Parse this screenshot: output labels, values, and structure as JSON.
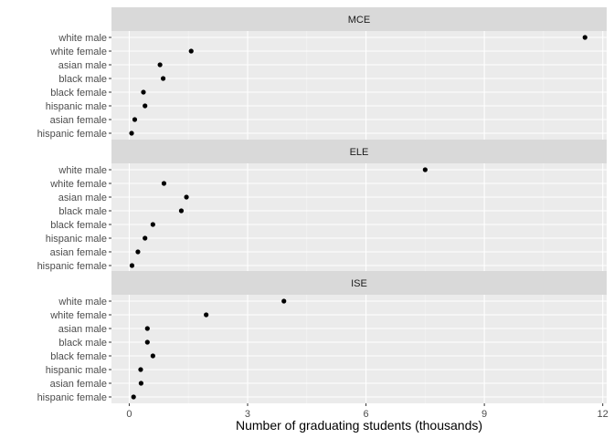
{
  "chart_data": {
    "type": "scatter",
    "xlabel": "Number of graduating students (thousands)",
    "xlim": [
      -0.45,
      12.1
    ],
    "xticks": [
      0,
      3,
      6,
      9,
      12
    ],
    "categories": [
      "white male",
      "white female",
      "asian male",
      "black male",
      "black female",
      "hispanic male",
      "asian female",
      "hispanic female"
    ],
    "grid": true,
    "legend": "none",
    "panels": [
      {
        "name": "MCE",
        "values": [
          11.55,
          1.57,
          0.78,
          0.86,
          0.36,
          0.4,
          0.14,
          0.06
        ]
      },
      {
        "name": "ELE",
        "values": [
          7.5,
          0.88,
          1.45,
          1.32,
          0.6,
          0.4,
          0.22,
          0.07
        ]
      },
      {
        "name": "ISE",
        "values": [
          3.92,
          1.95,
          0.46,
          0.46,
          0.6,
          0.29,
          0.3,
          0.11
        ]
      }
    ],
    "colors": {
      "panel_bg": "#ebebeb",
      "strip_bg": "#d9d9d9",
      "grid_major": "#ffffff",
      "point": "#000000"
    }
  }
}
